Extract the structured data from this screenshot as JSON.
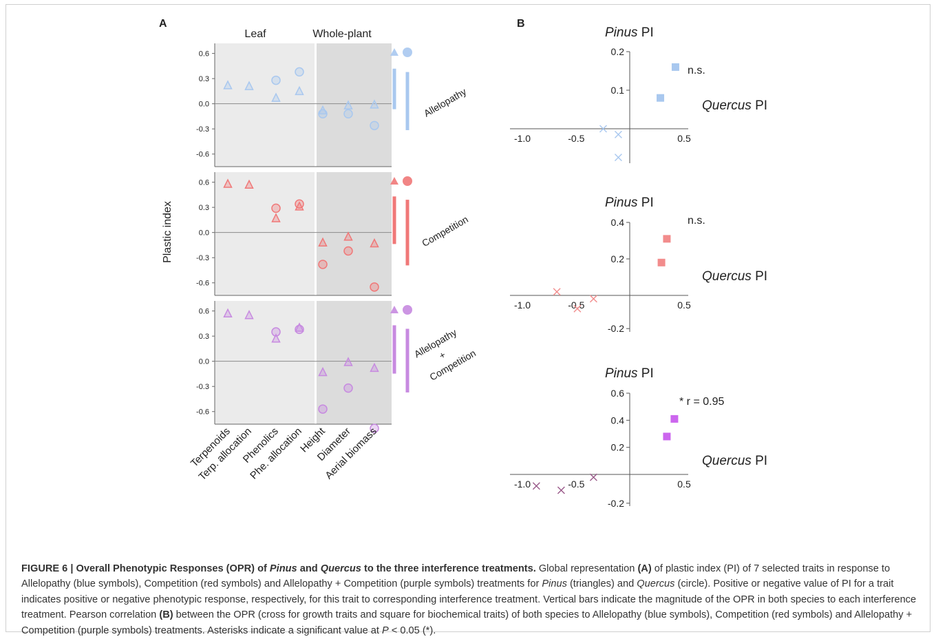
{
  "panel_labels": [
    "A",
    "B"
  ],
  "chart_data": [
    {
      "panel": "A",
      "type": "scatter",
      "ylabel": "Plastic index",
      "group_headers": [
        "Leaf",
        "Whole-plant"
      ],
      "categories": [
        "Terpenoids",
        "Terp. allocation",
        "Phenolics",
        "Phe. allocation",
        "Height",
        "Diameter",
        "Aerial biomass"
      ],
      "yticks": [
        "0.6",
        "0.3",
        "0.0",
        "-0.3",
        "-0.6"
      ],
      "ylim": [
        -0.75,
        0.72
      ],
      "subpanels": [
        {
          "treatment": "Allelopathy",
          "treatment_lines": [
            "Allelopathy"
          ],
          "color": "#a9c8ef",
          "series": [
            {
              "marker": "triangle",
              "values": [
                0.22,
                0.21,
                0.07,
                0.15,
                -0.08,
                -0.02,
                -0.01
              ]
            },
            {
              "marker": "circle",
              "values": [
                null,
                null,
                0.28,
                0.38,
                -0.12,
                -0.12,
                -0.26
              ]
            }
          ],
          "opr": {
            "triangle": [
              0.44,
              0.44
            ],
            "circle": [
              0.0,
              0.44
            ]
          }
        },
        {
          "treatment": "Competition",
          "treatment_lines": [
            "Competition"
          ],
          "color": "#f07878",
          "series": [
            {
              "marker": "triangle",
              "values": [
                0.58,
                0.57,
                0.17,
                0.31,
                -0.12,
                -0.05,
                -0.13
              ]
            },
            {
              "marker": "circle",
              "values": [
                null,
                null,
                0.29,
                0.34,
                -0.38,
                -0.22,
                -0.65
              ]
            }
          ],
          "opr": {
            "triangle": [
              0.56,
              0.58
            ],
            "circle": [
              0.62,
              0.59
            ]
          }
        },
        {
          "treatment": "Allelopathy + Competition",
          "treatment_lines": [
            "Allelopathy",
            "+",
            "Competition"
          ],
          "color": "#c78ae0",
          "series": [
            {
              "marker": "triangle",
              "values": [
                0.57,
                0.55,
                0.27,
                0.4,
                -0.13,
                -0.01,
                -0.08
              ]
            },
            {
              "marker": "circle",
              "values": [
                null,
                null,
                0.35,
                0.38,
                -0.57,
                -0.32,
                -0.8
              ]
            }
          ],
          "opr": {
            "triangle": [
              0.55,
              0.6
            ],
            "circle": [
              0.58,
              0.55
            ]
          }
        }
      ]
    },
    {
      "panel": "B",
      "type": "scatter",
      "xlabel": "Quercus PI",
      "ylabel": "Pinus PI",
      "subplots": [
        {
          "color": "#a9c8ef",
          "cross_color": "#a9c8ef",
          "annotation": "n.s.",
          "xlim": [
            -1.0,
            0.5
          ],
          "ylim": [
            -0.06,
            0.2
          ],
          "yticks": [
            "0.2",
            "0.1"
          ],
          "xticks": [
            "-1.0",
            "-0.5",
            "0.5"
          ],
          "squares": [
            [
              0.28,
              0.08
            ],
            [
              0.42,
              0.16
            ]
          ],
          "crosses": [
            [
              -0.25,
              0.0
            ],
            [
              -0.11,
              -0.01
            ],
            [
              -0.11,
              -0.05
            ]
          ]
        },
        {
          "color": "#f28c8c",
          "cross_color": "#f28c8c",
          "annotation": "n.s.",
          "xlim": [
            -1.0,
            0.5
          ],
          "ylim": [
            -0.22,
            0.4
          ],
          "yticks": [
            "0.4",
            "0.2",
            "-0.2"
          ],
          "xticks": [
            "-1.0",
            "-0.5",
            "0.5"
          ],
          "squares": [
            [
              0.29,
              0.18
            ],
            [
              0.34,
              0.31
            ]
          ],
          "crosses": [
            [
              -0.68,
              0.02
            ],
            [
              -0.34,
              -0.02
            ],
            [
              -0.49,
              -0.08
            ]
          ]
        },
        {
          "color": "#cc66ee",
          "cross_color": "#9a5a8a",
          "annotation": "* r = 0.95",
          "xlim": [
            -1.0,
            0.5
          ],
          "ylim": [
            -0.22,
            0.6
          ],
          "yticks": [
            "0.6",
            "0.4",
            "0.2",
            "-0.2"
          ],
          "xticks": [
            "-1.0",
            "-0.5",
            "0.5"
          ],
          "squares": [
            [
              0.34,
              0.28
            ],
            [
              0.41,
              0.41
            ]
          ],
          "crosses": [
            [
              -0.87,
              -0.08
            ],
            [
              -0.64,
              -0.11
            ],
            [
              -0.34,
              -0.02
            ]
          ]
        }
      ]
    }
  ],
  "caption": {
    "label": "FIGURE 6 |",
    "title_parts": [
      "Overall Phenotypic Responses (OPR) of ",
      "Pinus",
      " and ",
      "Quercus",
      " to the three interference treatments."
    ],
    "body_parts": [
      {
        "t": " Global representation "
      },
      {
        "t": "(A)",
        "b": true
      },
      {
        "t": " of plastic index (PI) of 7 selected traits in response to Allelopathy (blue symbols), Competition (red symbols) and Allelopathy + Competition (purple symbols) treatments for "
      },
      {
        "t": "Pinus",
        "i": true
      },
      {
        "t": " (triangles) and "
      },
      {
        "t": "Quercus",
        "i": true
      },
      {
        "t": " (circle). Positive or negative value of PI for a trait indicates positive or negative phenotypic response, respectively, for this trait to corresponding interference treatment. Vertical bars indicate the magnitude of the OPR in both species to each interference treatment. Pearson correlation "
      },
      {
        "t": "(B)",
        "b": true
      },
      {
        "t": " between the OPR (cross for growth traits and square for biochemical traits) of both species to Allelopathy (blue symbols), Competition (red symbols) and Allelopathy + Competition (purple symbols) treatments. Asterisks indicate a significant value at "
      },
      {
        "t": "P",
        "i": true
      },
      {
        "t": " < 0.05 (*)."
      }
    ]
  }
}
